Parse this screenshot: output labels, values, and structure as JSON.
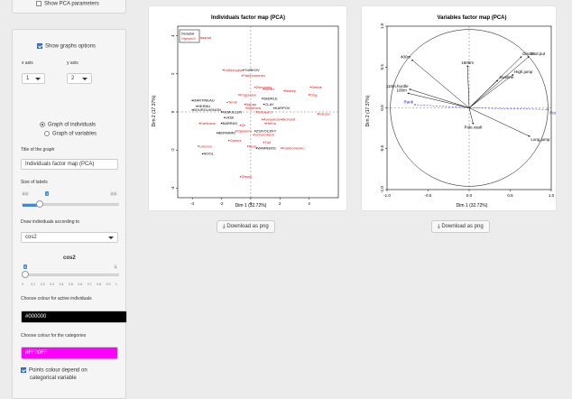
{
  "sidebar": {
    "show_pca_params": "Show PCA parameters",
    "show_graph_options": "Show graphs options",
    "x_axis_label": "x axis",
    "y_axis_label": "y axis",
    "x_axis_value": "1",
    "y_axis_value": "2",
    "graph_individuals": "Graph of individuals",
    "graph_variables": "Graph of variables",
    "title_label": "Title of the graph",
    "title_value": "Individuals factor map (PCA)",
    "size_label": "Size of labels",
    "size_min": "0.5",
    "size_value": "1",
    "size_max": "2.5",
    "draw_label": "Draw individuals according to",
    "draw_value": "cos2",
    "cos2_title": "cos2",
    "cos2_min": "0",
    "cos2_max": "1",
    "cos2_value": "0",
    "cos2_ticks": [
      "0",
      "0.1",
      "0.2",
      "0.3",
      "0.4",
      "0.5",
      "0.6",
      "0.7",
      "0.8",
      "0.9",
      "1"
    ],
    "active_colour_label": "Choose colour for active individuals",
    "active_colour_value": "#000000",
    "cat_colour_label": "Choose colour for the categories",
    "cat_colour_value": "#FF00FF",
    "points_colour_label_1": "Points colour depend on",
    "points_colour_label_2": "categorical variable"
  },
  "colors": {
    "active": "#000000",
    "category": "#FF00FF",
    "supp_ind": "#e01515",
    "supp_var": "#2020d0",
    "accent": "#428bca"
  },
  "buttons": {
    "download_png": "Download as png"
  },
  "chart_data": [
    {
      "type": "scatter",
      "title": "Individuals factor map (PCA)",
      "xlabel": "Dim 1 (32.72%)",
      "ylabel": "Dim 2 (17.37%)",
      "xlim": [
        -5,
        6
      ],
      "ylim": [
        -4.5,
        4.5
      ],
      "x_ticks": [
        "-4",
        "-2",
        "0",
        "2",
        "4"
      ],
      "y_ticks": [
        "-4",
        "-2",
        "0",
        "2",
        "4"
      ],
      "legend": {
        "placement": "top-left",
        "entries": [
          {
            "label": "Decastar",
            "color": "#000000"
          },
          {
            "label": "OlympicG",
            "color": "#e01515"
          }
        ]
      },
      "points": [
        {
          "label": "Casarsa",
          "x": -3.7,
          "y": 3.9,
          "color": "#e01515"
        },
        {
          "label": "Korkizoglou",
          "x": -1.9,
          "y": 2.2,
          "color": "#e01515"
        },
        {
          "label": "YURKOV",
          "x": -0.5,
          "y": 2.2,
          "color": "#000000"
        },
        {
          "label": "Parkhomenko",
          "x": -0.6,
          "y": 1.9,
          "color": "#e01515"
        },
        {
          "label": "Zsivoczky",
          "x": 0.3,
          "y": 1.3,
          "color": "#e01515"
        },
        {
          "label": "Smith",
          "x": 0.9,
          "y": 1.2,
          "color": "#e01515"
        },
        {
          "label": "Macey",
          "x": 2.3,
          "y": 1.1,
          "color": "#e01515"
        },
        {
          "label": "Sebrle",
          "x": 4.1,
          "y": 1.3,
          "color": "#e01515"
        },
        {
          "label": "Clay",
          "x": 4.0,
          "y": 0.9,
          "color": "#e01515"
        },
        {
          "label": "Pogorelov",
          "x": -0.8,
          "y": 0.9,
          "color": "#e01515"
        },
        {
          "label": "SEBRLE",
          "x": 0.8,
          "y": 0.7,
          "color": "#000000"
        },
        {
          "label": "CLAY",
          "x": 0.9,
          "y": 0.4,
          "color": "#000000"
        },
        {
          "label": "KARPOV",
          "x": 1.6,
          "y": 0.2,
          "color": "#000000"
        },
        {
          "label": "Karpov",
          "x": 4.6,
          "y": -0.1,
          "color": "#e01515"
        },
        {
          "label": "MARTINEAU",
          "x": -4.0,
          "y": 0.6,
          "color": "#000000"
        },
        {
          "label": "HERNU",
          "x": -3.7,
          "y": 0.3,
          "color": "#000000"
        },
        {
          "label": "Terek",
          "x": -1.6,
          "y": 0.5,
          "color": "#e01515"
        },
        {
          "label": "Barras",
          "x": -0.4,
          "y": 0.4,
          "color": "#e01515"
        },
        {
          "label": "BOURGUIGNON",
          "x": -4.0,
          "y": 0.1,
          "color": "#000000"
        },
        {
          "label": "McMULLEN",
          "x": -2.0,
          "y": 0.0,
          "color": "#000000"
        },
        {
          "label": "Warners",
          "x": -0.3,
          "y": 0.2,
          "color": "#e01515"
        },
        {
          "label": "Schwarzl",
          "x": 0.4,
          "y": 0.0,
          "color": "#e01515"
        },
        {
          "label": "Averyanov",
          "x": 0.8,
          "y": -0.4,
          "color": "#e01515"
        },
        {
          "label": "Bernard",
          "x": 2.1,
          "y": -0.4,
          "color": "#e01515"
        },
        {
          "label": "Uldal",
          "x": -1.8,
          "y": -0.3,
          "color": "#000000"
        },
        {
          "label": "Karlivans",
          "x": -3.5,
          "y": -0.6,
          "color": "#e01515"
        },
        {
          "label": "BARRAS",
          "x": -2.0,
          "y": -0.6,
          "color": "#000000"
        },
        {
          "label": "Qi",
          "x": -0.7,
          "y": -0.7,
          "color": "#e01515"
        },
        {
          "label": "Hernu",
          "x": 1.0,
          "y": -0.6,
          "color": "#e01515"
        },
        {
          "label": "BERNARD",
          "x": -2.3,
          "y": -1.1,
          "color": "#000000"
        },
        {
          "label": "Ojaniemi",
          "x": -1.0,
          "y": -1.0,
          "color": "#e01515"
        },
        {
          "label": "ZSIVOCZKY",
          "x": 0.3,
          "y": -1.0,
          "color": "#000000"
        },
        {
          "label": "Schoenbeck",
          "x": 0.2,
          "y": -1.2,
          "color": "#e01515"
        },
        {
          "label": "Gomez",
          "x": -1.5,
          "y": -1.5,
          "color": "#e01515"
        },
        {
          "label": "Nool",
          "x": -0.2,
          "y": -1.8,
          "color": "#e01515"
        },
        {
          "label": "Turi",
          "x": 0.9,
          "y": -1.6,
          "color": "#e01515"
        },
        {
          "label": "Lorenzo",
          "x": -3.6,
          "y": -1.8,
          "color": "#e01515"
        },
        {
          "label": "WARNERS",
          "x": 0.4,
          "y": -1.9,
          "color": "#000000"
        },
        {
          "label": "Parkhomenko",
          "x": 2.1,
          "y": -1.9,
          "color": "#e01515"
        },
        {
          "label": "NOOL",
          "x": -3.3,
          "y": -2.2,
          "color": "#000000"
        },
        {
          "label": "Drews",
          "x": -0.7,
          "y": -3.4,
          "color": "#e01515"
        }
      ]
    },
    {
      "type": "scatter",
      "title": "Variables factor map (PCA)",
      "xlabel": "Dim 1 (32.72%)",
      "ylabel": "Dim 2 (17.37%)",
      "xlim": [
        -1.0,
        1.0
      ],
      "ylim": [
        -1.0,
        1.0
      ],
      "x_ticks": [
        "-1.0",
        "-0.5",
        "0.0",
        "0.5",
        "1.0"
      ],
      "y_ticks": [
        "-1.0",
        "-0.5",
        "0.0",
        "0.5",
        "1.0"
      ],
      "grid": false,
      "variables": [
        {
          "label": "400m",
          "x": -0.7,
          "y": 0.59,
          "color": "#000000"
        },
        {
          "label": "1500m",
          "x": -0.02,
          "y": 0.52,
          "color": "#000000"
        },
        {
          "label": "Discus",
          "x": 0.64,
          "y": 0.63,
          "color": "#000000"
        },
        {
          "label": "Shot.put",
          "x": 0.73,
          "y": 0.63,
          "color": "#000000"
        },
        {
          "label": "Javeline",
          "x": 0.35,
          "y": 0.34,
          "color": "#000000"
        },
        {
          "label": "High.jump",
          "x": 0.54,
          "y": 0.41,
          "color": "#000000"
        },
        {
          "label": "110m.hurdle",
          "x": -0.73,
          "y": 0.23,
          "color": "#000000"
        },
        {
          "label": "100m",
          "x": -0.75,
          "y": 0.18,
          "color": "#000000"
        },
        {
          "label": "Rank",
          "x": -0.67,
          "y": 0.04,
          "color": "#2020d0"
        },
        {
          "label": "Points",
          "x": 0.97,
          "y": -0.02,
          "color": "#2020d0"
        },
        {
          "label": "Pole.vault",
          "x": 0.05,
          "y": -0.2,
          "color": "#000000"
        },
        {
          "label": "Long.jump",
          "x": 0.74,
          "y": -0.35,
          "color": "#000000"
        }
      ]
    }
  ]
}
